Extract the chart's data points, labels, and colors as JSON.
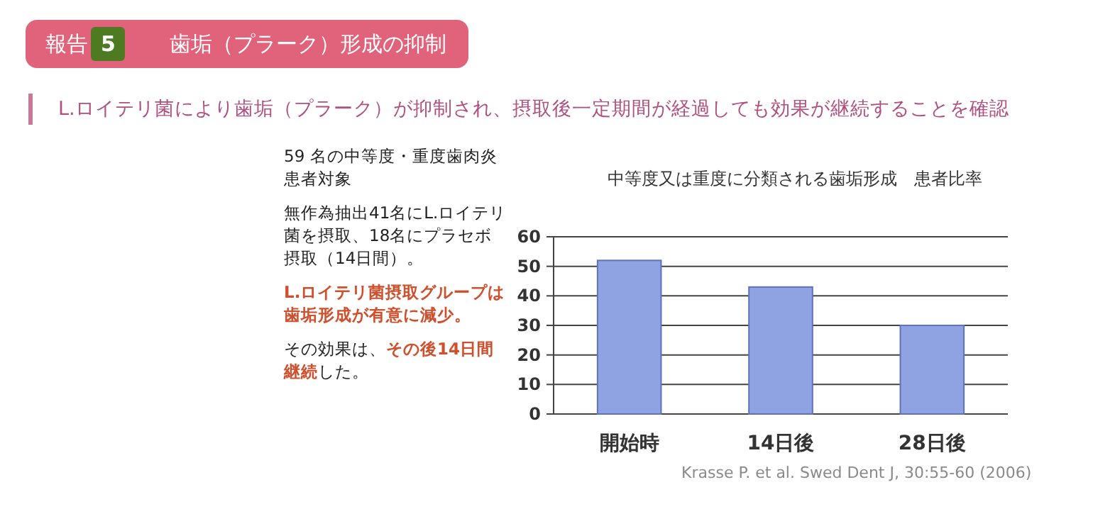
{
  "chart_data": {
    "type": "bar",
    "title": "報告**5**　歯垢（プラーク）形成の抑制",
    "subtitle": "L.ロイテリ菌により歯垢（プラーク）が抑制され、摂取後一定期間が経過しても効果が継続することを確認",
    "xlabel": "中等度又は重度に分類される歯垢形成　患者比率",
    "annotations": [
      "59 名の中等度・重度歯肉炎患者対象",
      "無作為抽出41名にL.ロイテリ菌を摂取、18名にプラセボ摂取（14日間）。",
      "**L.ロイテリ菌摂取グループは歯垢形成が有意に減少。**",
      "その効果は、**その後14日間継続**した。",
      "Krasse P. et al. Swed Dent J, 30:55-60 (2006)"
    ],
    "categories": [
      "開始時",
      "14日後",
      "28日後"
    ],
    "values": [
      52,
      43,
      30
    ],
    "color": "#8fa2e2",
    "ylim": [
      0,
      60
    ],
    "yticks": [
      0,
      10,
      20,
      30,
      40,
      50,
      60
    ],
    "grid": "y"
  }
}
